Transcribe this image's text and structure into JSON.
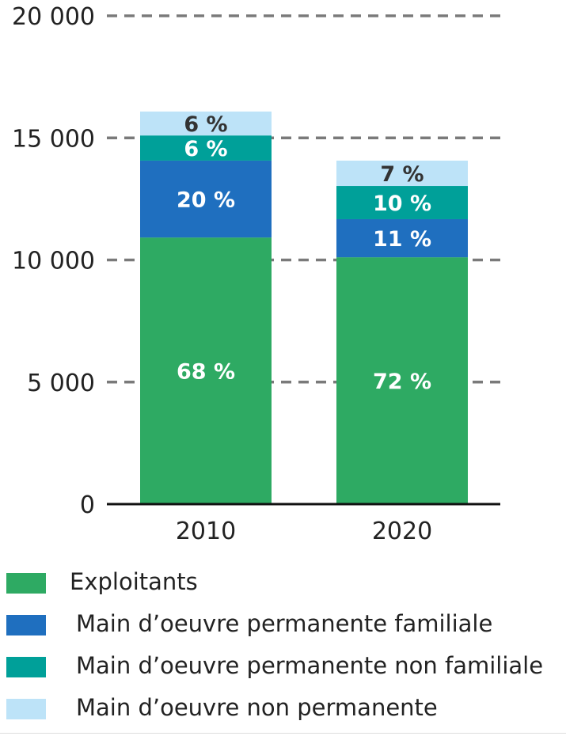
{
  "chart_data": {
    "type": "bar",
    "stacked": true,
    "categories": [
      "2010",
      "2020"
    ],
    "ylim": [
      0,
      20000
    ],
    "yticks": [
      0,
      5000,
      10000,
      15000,
      20000
    ],
    "ytick_labels": [
      "0",
      "5 000",
      "10 000",
      "15 000",
      "20 000"
    ],
    "grid": "dashed horizontal",
    "legend_position": "bottom",
    "series": [
      {
        "name": "Exploitants",
        "color": "#2eaa63",
        "label_color": "#ffffff",
        "values": [
          10920,
          10110
        ],
        "labels": [
          "68 %",
          "72 %"
        ]
      },
      {
        "name": "Main d’oeuvre permanente familiale",
        "color": "#1f6fbf",
        "label_color": "#ffffff",
        "values": [
          3150,
          1560
        ],
        "labels": [
          "20 %",
          "11 %"
        ]
      },
      {
        "name": "Main d’oeuvre permanente non familiale",
        "color": "#00a099",
        "label_color": "#ffffff",
        "values": [
          1030,
          1360
        ],
        "labels": [
          "6 %",
          "10 %"
        ]
      },
      {
        "name": "Main d’oeuvre non permanente",
        "color": "#bde3f8",
        "label_color": "#333333",
        "values": [
          980,
          1040
        ],
        "labels": [
          "6 %",
          "7 %"
        ]
      }
    ]
  }
}
